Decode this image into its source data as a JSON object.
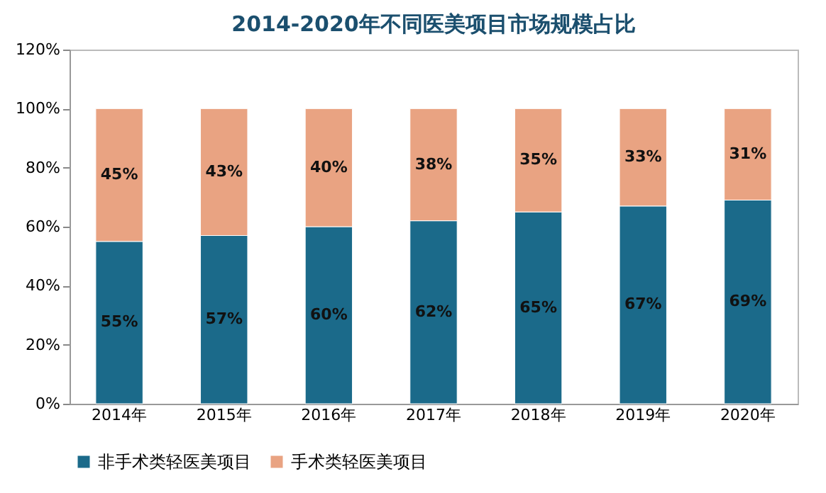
{
  "chart_data": {
    "type": "bar",
    "title": "2014-2020年不同医美项目市场规模占比",
    "stacked": true,
    "legend": "bottom",
    "grid": false,
    "categories": [
      "2014年",
      "2015年",
      "2016年",
      "2017年",
      "2018年",
      "2019年",
      "2020年"
    ],
    "series": [
      {
        "name": "非手术类轻医美项目",
        "color": "#1b6a8a",
        "values": [
          55,
          57,
          60,
          62,
          65,
          67,
          69
        ],
        "value_labels": [
          "55%",
          "57%",
          "60%",
          "62%",
          "65%",
          "67%",
          "69%"
        ]
      },
      {
        "name": "手术类轻医美项目",
        "color": "#e9a382",
        "values": [
          45,
          43,
          40,
          38,
          35,
          33,
          31
        ],
        "value_labels": [
          "45%",
          "43%",
          "40%",
          "38%",
          "35%",
          "33%",
          "31%"
        ]
      }
    ],
    "ylim": [
      0,
      120
    ],
    "yticks": [
      {
        "value": 0,
        "label": "0%"
      },
      {
        "value": 20,
        "label": "20%"
      },
      {
        "value": 40,
        "label": "40%"
      },
      {
        "value": 60,
        "label": "60%"
      },
      {
        "value": 80,
        "label": "80%"
      },
      {
        "value": 100,
        "label": "100%"
      },
      {
        "value": 120,
        "label": "120%"
      }
    ]
  }
}
